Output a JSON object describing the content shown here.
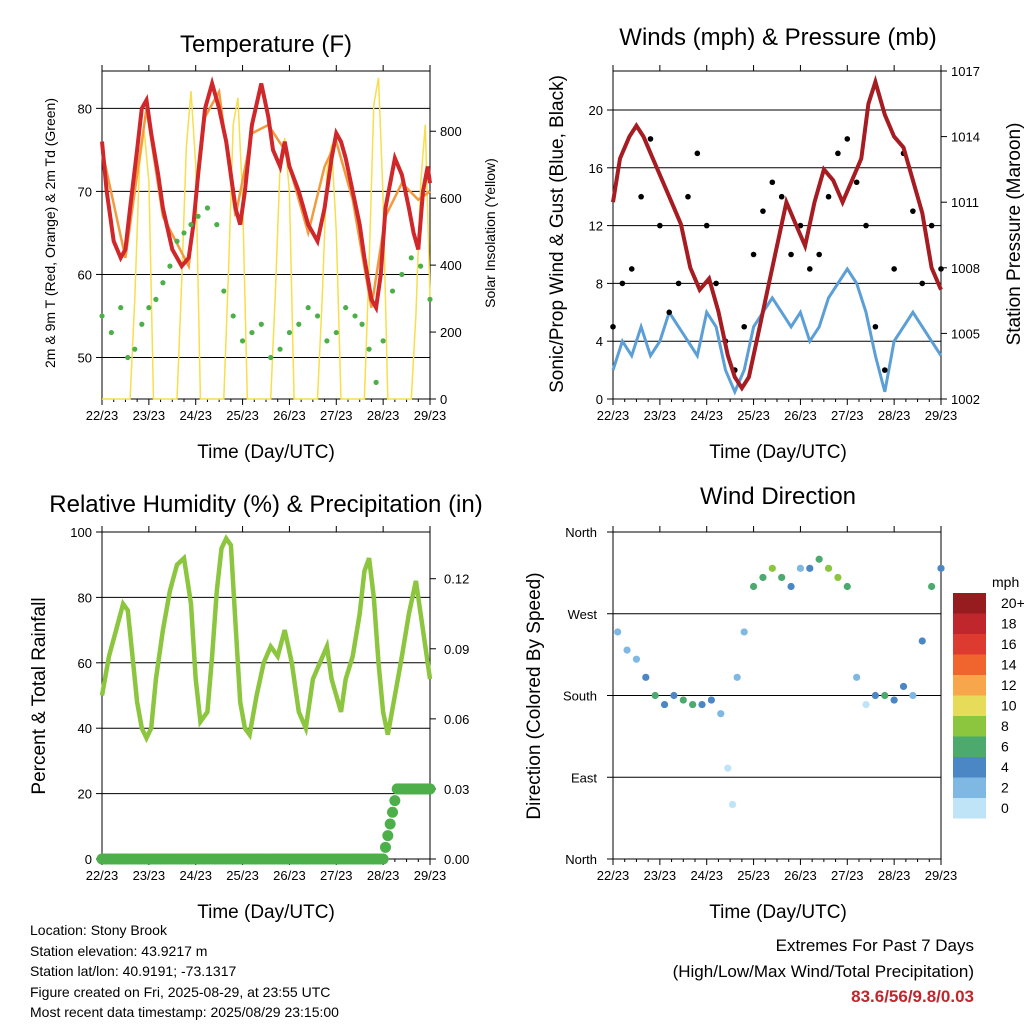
{
  "panels": {
    "temperature": {
      "title": "Temperature (F)",
      "ylabel_left": "2m & 9m T (Red, Orange) & 2m Td (Green)",
      "ylabel_right": "Solar Insolation (Yellow)",
      "xlabel": "Time (Day/UTC)"
    },
    "winds": {
      "title": "Winds (mph) & Pressure (mb)",
      "ylabel_left": "Sonic/Prop Wind & Gust (Blue, Black)",
      "ylabel_right": "Station Pressure (Maroon)",
      "xlabel": "Time (Day/UTC)"
    },
    "humidity": {
      "title": "Relative Humidity (%) & Precipitation (in)",
      "ylabel_left": "Percent & Total Rainfall",
      "xlabel": "Time (Day/UTC)"
    },
    "direction": {
      "title": "Wind Direction",
      "ylabel_left": "Direction (Colored By Speed)",
      "xlabel": "Time (Day/UTC)",
      "legend_title": "mph"
    }
  },
  "station": {
    "location": "Location: Stony Brook",
    "elevation": "Station elevation: 43.9217 m",
    "latlon": "Station lat/lon: 40.9191; -73.1317",
    "created": "Figure created on Fri, 2025-08-29, at 23:55 UTC",
    "latest": "Most recent data timestamp: 2025/08/29 23:15:00"
  },
  "extremes": {
    "line1": "Extremes For Past 7 Days",
    "line2": "(High/Low/Max Wind/Total Precipitation)",
    "values": "83.6/56/9.8/0.03"
  },
  "colors": {
    "temp2m": "#d0272b",
    "temp9m": "#f39a3c",
    "dewpoint": "#4caf4a",
    "solar": "#f7de4d",
    "wind": "#5b9fd6",
    "gust": "#000000",
    "pressure": "#a51c22",
    "rh": "#8cc63f",
    "precip": "#4caf4a"
  },
  "chart_data": [
    {
      "id": "temperature",
      "type": "line",
      "x_tick_labels": [
        "22/23",
        "23/23",
        "24/23",
        "25/23",
        "26/23",
        "27/23",
        "28/23",
        "29/23"
      ],
      "x_range_days": [
        0,
        7
      ],
      "y_left_range": [
        45,
        84.5
      ],
      "y_left_ticks": [
        50,
        60,
        70,
        80
      ],
      "y_right_range": [
        0,
        980
      ],
      "y_right_ticks": [
        0,
        200,
        400,
        600,
        800
      ],
      "grid_y": [
        50,
        60,
        70,
        80
      ],
      "series": [
        {
          "name": "2m T",
          "color_key": "temp2m",
          "x": [
            0,
            0.1,
            0.25,
            0.4,
            0.5,
            0.6,
            0.75,
            0.85,
            0.95,
            1.05,
            1.2,
            1.3,
            1.5,
            1.7,
            1.85,
            1.95,
            2.05,
            2.2,
            2.35,
            2.5,
            2.65,
            2.75,
            2.85,
            2.95,
            3.05,
            3.2,
            3.4,
            3.55,
            3.65,
            3.8,
            3.9,
            4.0,
            4.2,
            4.4,
            4.6,
            4.75,
            4.9,
            5.0,
            5.1,
            5.2,
            5.35,
            5.5,
            5.6,
            5.75,
            5.85,
            5.95,
            6.05,
            6.25,
            6.4,
            6.55,
            6.65,
            6.75,
            6.85,
            6.95,
            7.0
          ],
          "y": [
            76,
            70,
            64,
            62,
            63,
            68,
            75,
            80,
            81,
            77,
            72,
            68,
            63,
            61,
            62,
            66,
            72,
            80,
            83,
            80,
            76,
            72,
            68,
            66,
            70,
            78,
            83,
            79,
            75,
            73,
            76,
            73,
            70,
            66,
            64,
            68,
            74,
            77,
            76,
            74,
            70,
            66,
            62,
            57,
            56,
            60,
            68,
            74,
            72,
            68,
            65,
            63,
            70,
            73,
            71
          ]
        },
        {
          "name": "9m T",
          "color_key": "temp9m",
          "x": [
            0,
            0.5,
            0.95,
            1.3,
            1.85,
            2.2,
            2.5,
            2.85,
            3.2,
            3.55,
            3.9,
            4.4,
            4.75,
            5.0,
            5.35,
            5.75,
            6.05,
            6.4,
            6.75,
            7.0
          ],
          "y": [
            75,
            62,
            80,
            67,
            61,
            79,
            82,
            67,
            77,
            78,
            75,
            65,
            73,
            76,
            69,
            56,
            67,
            71,
            69,
            70
          ]
        },
        {
          "name": "2m Td",
          "color_key": "dewpoint",
          "x": [
            0,
            0.2,
            0.4,
            0.55,
            0.7,
            0.85,
            1.0,
            1.15,
            1.3,
            1.45,
            1.6,
            1.75,
            1.9,
            2.05,
            2.25,
            2.45,
            2.6,
            2.8,
            3.0,
            3.2,
            3.4,
            3.6,
            3.8,
            4.0,
            4.2,
            4.4,
            4.6,
            4.8,
            5.0,
            5.2,
            5.4,
            5.55,
            5.7,
            5.85,
            6.0,
            6.2,
            6.4,
            6.6,
            6.8,
            7.0
          ],
          "y": [
            55,
            53,
            56,
            50,
            51,
            54,
            56,
            57,
            59,
            61,
            64,
            65,
            66,
            67,
            68,
            66,
            58,
            55,
            52,
            53,
            54,
            50,
            51,
            53,
            54,
            56,
            55,
            52,
            53,
            56,
            55,
            54,
            51,
            47,
            52,
            58,
            60,
            62,
            61,
            57
          ]
        },
        {
          "name": "Solar Insolation",
          "color_key": "solar",
          "axis": "right",
          "x": [
            0,
            0.6,
            0.7,
            0.8,
            0.9,
            1.0,
            1.1,
            1.6,
            1.7,
            1.8,
            1.9,
            2.0,
            2.1,
            2.6,
            2.7,
            2.8,
            2.9,
            3.0,
            3.1,
            3.6,
            3.7,
            3.8,
            3.9,
            4.0,
            4.1,
            4.6,
            4.7,
            4.8,
            4.9,
            5.0,
            5.1,
            5.6,
            5.7,
            5.8,
            5.9,
            6.0,
            6.1,
            6.6,
            6.7,
            6.8,
            6.9,
            7.0
          ],
          "y": [
            0,
            0,
            300,
            700,
            800,
            650,
            0,
            0,
            350,
            750,
            920,
            700,
            0,
            0,
            380,
            820,
            900,
            600,
            0,
            0,
            320,
            700,
            780,
            620,
            0,
            0,
            300,
            680,
            760,
            500,
            0,
            0,
            400,
            880,
            960,
            600,
            0,
            0,
            250,
            640,
            820,
            300
          ]
        }
      ]
    },
    {
      "id": "winds",
      "type": "scatter",
      "x_tick_labels": [
        "22/23",
        "23/23",
        "24/23",
        "25/23",
        "26/23",
        "27/23",
        "28/23",
        "29/23"
      ],
      "x_range_days": [
        0,
        7
      ],
      "y_left_range": [
        0,
        22.7
      ],
      "y_left_ticks": [
        0,
        4,
        8,
        12,
        16,
        20
      ],
      "y_right_range": [
        1002,
        1017
      ],
      "y_right_ticks": [
        1002,
        1005,
        1008,
        1011,
        1014,
        1017
      ],
      "grid_y": [
        4,
        8,
        12,
        16,
        20
      ],
      "series": [
        {
          "name": "Sonic/Prop Wind",
          "color_key": "wind",
          "x": [
            0,
            0.2,
            0.4,
            0.6,
            0.8,
            1.0,
            1.2,
            1.4,
            1.6,
            1.8,
            2.0,
            2.2,
            2.4,
            2.6,
            2.8,
            3.0,
            3.2,
            3.4,
            3.6,
            3.8,
            4.0,
            4.2,
            4.4,
            4.6,
            4.8,
            5.0,
            5.2,
            5.4,
            5.6,
            5.8,
            6.0,
            6.2,
            6.4,
            6.6,
            6.8,
            7.0
          ],
          "y": [
            2,
            4,
            3,
            5,
            3,
            4,
            6,
            5,
            4,
            3,
            6,
            5,
            2,
            0.5,
            2,
            5,
            6,
            7,
            6,
            5,
            6,
            4,
            5,
            7,
            8,
            9,
            8,
            6,
            3,
            0.5,
            4,
            5,
            6,
            5,
            4,
            3
          ]
        },
        {
          "name": "Gust",
          "color_key": "gust",
          "x": [
            0,
            0.2,
            0.4,
            0.6,
            0.8,
            1.0,
            1.2,
            1.4,
            1.6,
            1.8,
            2.0,
            2.2,
            2.4,
            2.6,
            2.8,
            3.0,
            3.2,
            3.4,
            3.6,
            3.8,
            4.0,
            4.2,
            4.4,
            4.6,
            4.8,
            5.0,
            5.2,
            5.4,
            5.6,
            5.8,
            6.0,
            6.2,
            6.4,
            6.6,
            6.8,
            7.0
          ],
          "y": [
            5,
            8,
            9,
            14,
            18,
            12,
            6,
            8,
            14,
            17,
            12,
            8,
            4,
            2,
            5,
            10,
            13,
            15,
            14,
            10,
            12,
            9,
            10,
            14,
            17,
            18,
            15,
            12,
            5,
            2,
            9,
            17,
            13,
            8,
            12,
            9
          ]
        },
        {
          "name": "Station Pressure",
          "color_key": "pressure",
          "axis": "right",
          "x": [
            0,
            0.15,
            0.35,
            0.5,
            0.65,
            0.85,
            1.05,
            1.25,
            1.45,
            1.65,
            1.85,
            2.05,
            2.25,
            2.45,
            2.6,
            2.75,
            2.9,
            3.1,
            3.3,
            3.5,
            3.7,
            3.9,
            4.1,
            4.3,
            4.5,
            4.7,
            4.9,
            5.1,
            5.3,
            5.45,
            5.6,
            5.8,
            6.0,
            6.2,
            6.4,
            6.6,
            6.8,
            7.0
          ],
          "y": [
            1011,
            1013,
            1014,
            1014.5,
            1014,
            1013,
            1012,
            1011,
            1010,
            1008,
            1007,
            1007.5,
            1006,
            1004,
            1003,
            1002.5,
            1003,
            1005,
            1007,
            1009,
            1011,
            1010,
            1009,
            1011,
            1012.5,
            1012,
            1011,
            1012,
            1013,
            1015.5,
            1016.5,
            1015,
            1014,
            1013.5,
            1012,
            1010.5,
            1008,
            1007
          ]
        }
      ]
    },
    {
      "id": "humidity",
      "type": "line",
      "x_tick_labels": [
        "22/23",
        "23/23",
        "24/23",
        "25/23",
        "26/23",
        "27/23",
        "28/23",
        "29/23"
      ],
      "x_range_days": [
        0,
        7
      ],
      "y_left_range": [
        0,
        100
      ],
      "y_left_ticks": [
        0,
        20,
        40,
        60,
        80,
        100
      ],
      "y_right_range": [
        0,
        0.14
      ],
      "y_right_ticks": [
        "0.00",
        "0.03",
        "0.06",
        "0.09",
        "0.12"
      ],
      "grid_y": [
        20,
        40,
        60,
        80
      ],
      "series": [
        {
          "name": "Relative Humidity",
          "color_key": "rh",
          "x": [
            0,
            0.15,
            0.3,
            0.45,
            0.55,
            0.65,
            0.75,
            0.85,
            0.95,
            1.05,
            1.15,
            1.3,
            1.45,
            1.6,
            1.75,
            1.9,
            2.0,
            2.1,
            2.25,
            2.35,
            2.45,
            2.55,
            2.65,
            2.75,
            2.85,
            2.95,
            3.05,
            3.15,
            3.3,
            3.45,
            3.6,
            3.75,
            3.9,
            4.05,
            4.2,
            4.35,
            4.5,
            4.65,
            4.8,
            4.9,
            5.0,
            5.1,
            5.2,
            5.35,
            5.5,
            5.6,
            5.7,
            5.8,
            5.9,
            6.0,
            6.1,
            6.25,
            6.4,
            6.55,
            6.7,
            6.85,
            7.0
          ],
          "y": [
            50,
            62,
            70,
            78,
            76,
            62,
            48,
            40,
            37,
            40,
            55,
            70,
            82,
            90,
            92,
            78,
            55,
            42,
            45,
            62,
            82,
            95,
            98,
            96,
            72,
            48,
            40,
            38,
            50,
            60,
            65,
            62,
            70,
            60,
            45,
            40,
            55,
            60,
            65,
            55,
            50,
            45,
            55,
            62,
            75,
            88,
            92,
            80,
            60,
            45,
            38,
            50,
            62,
            75,
            85,
            70,
            55
          ]
        },
        {
          "name": "Total Precipitation",
          "color_key": "precip",
          "axis": "right",
          "x": [
            0,
            1,
            2,
            3,
            4,
            5,
            6,
            6.3,
            6.5,
            7.0
          ],
          "y": [
            0,
            0,
            0,
            0,
            0,
            0,
            0,
            0.03,
            0.03,
            0.03
          ]
        }
      ]
    },
    {
      "id": "direction",
      "type": "scatter",
      "x_tick_labels": [
        "22/23",
        "23/23",
        "24/23",
        "25/23",
        "26/23",
        "27/23",
        "28/23",
        "29/23"
      ],
      "x_range_days": [
        0,
        7
      ],
      "y_tick_labels": [
        "North",
        "East",
        "South",
        "West",
        "North"
      ],
      "y_ticks_deg": [
        0,
        90,
        180,
        270,
        360
      ],
      "grid_y_deg": [
        90,
        180,
        270
      ],
      "legend": {
        "title": "mph",
        "labels": [
          "20+",
          "18",
          "16",
          "14",
          "12",
          "10",
          "8",
          "6",
          "4",
          "2",
          "0"
        ],
        "colors": [
          "#961c1f",
          "#c0272d",
          "#dd3a30",
          "#f0652d",
          "#f7a64b",
          "#e6dc5a",
          "#8cc63f",
          "#4daa6e",
          "#4a87c4",
          "#7fb9e3",
          "#bfe3f7"
        ]
      },
      "series": [
        {
          "name": "Direction",
          "x": [
            0.1,
            0.3,
            0.5,
            0.7,
            0.9,
            1.1,
            1.3,
            1.5,
            1.7,
            1.9,
            2.1,
            2.3,
            2.45,
            2.55,
            2.65,
            2.8,
            3.0,
            3.2,
            3.4,
            3.6,
            3.8,
            4.0,
            4.2,
            4.4,
            4.6,
            4.8,
            5.0,
            5.2,
            5.4,
            5.6,
            5.8,
            6.0,
            6.2,
            6.4,
            6.6,
            6.8,
            7.0
          ],
          "y": [
            250,
            230,
            220,
            200,
            180,
            170,
            180,
            175,
            170,
            170,
            175,
            160,
            100,
            60,
            200,
            250,
            300,
            310,
            320,
            310,
            300,
            320,
            320,
            330,
            320,
            310,
            300,
            200,
            170,
            180,
            180,
            175,
            190,
            180,
            240,
            300,
            320
          ],
          "speed": [
            2,
            3,
            3,
            4,
            6,
            5,
            5,
            6,
            6,
            4,
            5,
            3,
            1,
            0,
            2,
            3,
            6,
            7,
            8,
            6,
            5,
            3,
            5,
            7,
            9,
            8,
            6,
            2,
            0,
            5,
            6,
            5,
            4,
            3,
            4,
            6,
            5
          ]
        }
      ]
    }
  ]
}
